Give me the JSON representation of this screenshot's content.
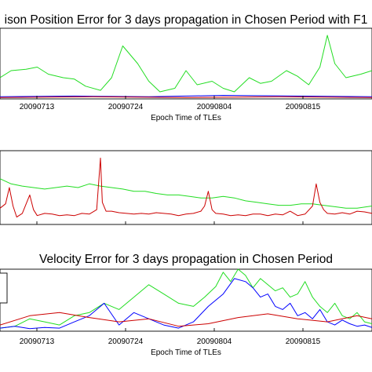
{
  "chart_data": [
    {
      "type": "line",
      "title": "ison Position Error for 3 days propagation in Chosen Period with F1",
      "xlabel": "Epoch Time of TLEs",
      "ylabel": "",
      "x_tick_labels": [
        "20090713",
        "20090724",
        "20090804",
        "20090815"
      ],
      "xlim": [
        0,
        100
      ],
      "ylim": [
        0,
        100
      ],
      "series": [
        {
          "color": "#22dd22",
          "x": [
            0,
            3,
            7,
            10,
            13,
            17,
            20,
            23,
            27,
            30,
            33,
            37,
            40,
            43,
            47,
            50,
            53,
            57,
            60,
            63,
            67,
            70,
            73,
            77,
            80,
            83,
            86,
            88,
            90,
            93,
            97,
            100
          ],
          "y": [
            30,
            40,
            42,
            45,
            35,
            30,
            28,
            18,
            12,
            30,
            75,
            50,
            25,
            10,
            15,
            40,
            20,
            25,
            15,
            10,
            30,
            22,
            25,
            40,
            32,
            20,
            45,
            90,
            50,
            30,
            35,
            40
          ]
        },
        {
          "color": "#0000ff",
          "x": [
            0,
            20,
            40,
            60,
            80,
            100
          ],
          "y": [
            3,
            4,
            3,
            5,
            4,
            3
          ]
        },
        {
          "color": "#cc0000",
          "x": [
            0,
            25,
            50,
            75,
            100
          ],
          "y": [
            2,
            3,
            2,
            3,
            2
          ]
        }
      ]
    },
    {
      "type": "line",
      "title": "",
      "xlabel": "",
      "ylabel": "",
      "x_tick_labels": [],
      "xlim": [
        0,
        100
      ],
      "ylim": [
        0,
        100
      ],
      "series": [
        {
          "color": "#22dd22",
          "x": [
            0,
            3,
            6,
            9,
            12,
            15,
            18,
            21,
            24,
            27,
            30,
            33,
            36,
            39,
            42,
            45,
            48,
            51,
            54,
            57,
            60,
            63,
            66,
            69,
            72,
            75,
            78,
            81,
            84,
            87,
            90,
            93,
            96,
            100
          ],
          "y": [
            62,
            55,
            52,
            50,
            48,
            50,
            52,
            50,
            55,
            52,
            50,
            48,
            45,
            45,
            42,
            40,
            40,
            38,
            36,
            36,
            38,
            36,
            32,
            30,
            28,
            26,
            26,
            28,
            28,
            26,
            24,
            22,
            22,
            25
          ]
        },
        {
          "color": "#cc0000",
          "x": [
            0,
            1.5,
            2.5,
            3.5,
            4.5,
            6,
            8,
            9,
            10,
            12,
            14,
            16,
            18,
            20,
            22,
            24,
            26,
            27,
            27.5,
            28.5,
            30,
            32,
            34,
            36,
            38,
            40,
            42,
            44,
            46,
            48,
            50,
            52,
            54,
            55,
            56,
            57,
            58,
            60,
            62,
            64,
            66,
            68,
            70,
            72,
            74,
            76,
            78,
            80,
            82,
            84,
            85,
            86,
            87,
            88,
            90,
            92,
            94,
            96,
            98,
            100
          ],
          "y": [
            22,
            28,
            50,
            25,
            10,
            15,
            40,
            20,
            12,
            15,
            14,
            12,
            13,
            12,
            15,
            14,
            20,
            90,
            30,
            18,
            18,
            16,
            15,
            14,
            15,
            14,
            16,
            15,
            14,
            12,
            14,
            15,
            18,
            25,
            45,
            20,
            15,
            14,
            12,
            13,
            12,
            14,
            14,
            12,
            14,
            13,
            18,
            12,
            14,
            25,
            55,
            30,
            20,
            15,
            14,
            16,
            14,
            18,
            17,
            15
          ]
        }
      ]
    },
    {
      "type": "line",
      "title": "Velocity Error for 3 days propagation in Chosen Period",
      "xlabel": "Epoch Time of TLEs",
      "ylabel": "",
      "x_tick_labels": [
        "20090713",
        "20090724",
        "20090804",
        "20090815"
      ],
      "xlim": [
        0,
        100
      ],
      "ylim": [
        0,
        100
      ],
      "series": [
        {
          "color": "#22dd22",
          "x": [
            0,
            4,
            8,
            12,
            16,
            20,
            24,
            28,
            32,
            36,
            40,
            44,
            48,
            52,
            55,
            58,
            60,
            62,
            64,
            66,
            68,
            70,
            72,
            74,
            76,
            78,
            80,
            82,
            84,
            86,
            88,
            90,
            92,
            94,
            96,
            98,
            100
          ],
          "y": [
            5,
            8,
            20,
            15,
            10,
            25,
            30,
            45,
            35,
            55,
            75,
            60,
            45,
            40,
            55,
            72,
            95,
            80,
            100,
            90,
            70,
            85,
            75,
            65,
            70,
            55,
            60,
            80,
            55,
            40,
            30,
            45,
            25,
            20,
            30,
            15,
            12
          ]
        },
        {
          "color": "#0000ff",
          "x": [
            0,
            4,
            8,
            12,
            16,
            20,
            24,
            28,
            32,
            36,
            40,
            44,
            48,
            52,
            56,
            60,
            63,
            66,
            68,
            70,
            72,
            74,
            76,
            78,
            80,
            82,
            84,
            86,
            88,
            90,
            92,
            94,
            96,
            98,
            100
          ],
          "y": [
            5,
            8,
            4,
            6,
            5,
            15,
            25,
            45,
            10,
            30,
            20,
            10,
            5,
            15,
            40,
            60,
            85,
            80,
            70,
            55,
            60,
            40,
            35,
            45,
            25,
            30,
            20,
            35,
            15,
            10,
            18,
            12,
            8,
            10,
            6
          ]
        },
        {
          "color": "#cc0000",
          "x": [
            0,
            8,
            16,
            24,
            32,
            40,
            48,
            56,
            64,
            72,
            80,
            88,
            96,
            100
          ],
          "y": [
            10,
            25,
            30,
            22,
            15,
            20,
            8,
            12,
            22,
            28,
            20,
            15,
            25,
            20
          ]
        }
      ]
    }
  ]
}
